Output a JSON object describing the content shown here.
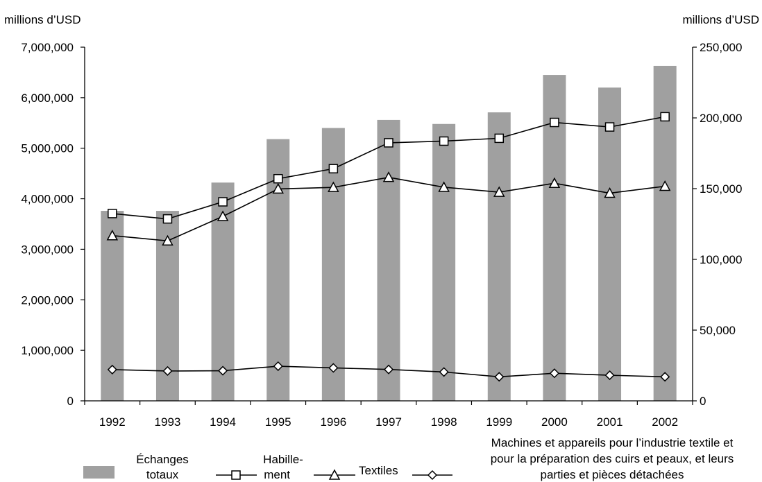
{
  "chart_data": {
    "type": "bar+line",
    "title": "",
    "left_unit": "millions d’USD",
    "right_unit": "millions d’USD",
    "ylim_left": [
      0,
      7000000
    ],
    "ylim_right": [
      0,
      250000
    ],
    "yticks_left": [
      "0",
      "1,000,000",
      "2,000,000",
      "3,000,000",
      "4,000,000",
      "5,000,000",
      "6,000,000",
      "7,000,000"
    ],
    "yticks_right": [
      "0",
      "50,000",
      "100,000",
      "150,000",
      "200,000",
      "250,000"
    ],
    "categories": [
      "1992",
      "1993",
      "1994",
      "1995",
      "1996",
      "1997",
      "1998",
      "1999",
      "2000",
      "2001",
      "2002"
    ],
    "series": [
      {
        "name": "Échanges totaux",
        "type": "bar",
        "axis": "left",
        "color": "#a0a0a0",
        "values": [
          3760000,
          3760000,
          4320000,
          5180000,
          5400000,
          5560000,
          5480000,
          5710000,
          6450000,
          6200000,
          6630000
        ]
      },
      {
        "name": "Habillement",
        "type": "line",
        "axis": "right",
        "marker": "square",
        "values": [
          132400,
          128600,
          140700,
          157000,
          164100,
          182400,
          183600,
          185600,
          196800,
          193600,
          200800
        ]
      },
      {
        "name": "Textiles",
        "type": "line",
        "axis": "right",
        "marker": "triangle",
        "values": [
          116800,
          113100,
          130400,
          149800,
          150900,
          158000,
          151000,
          147500,
          153800,
          146800,
          151700
        ]
      },
      {
        "name": "Machines et appareils pour l’industrie textile et pour la préparation des cuirs et peaux, et leurs parties et pièces détachées",
        "type": "line",
        "axis": "right",
        "marker": "diamond",
        "values": [
          22100,
          21100,
          21300,
          24500,
          23300,
          22200,
          20400,
          17000,
          19500,
          18100,
          17000
        ]
      }
    ]
  },
  "legend": {
    "bar_label_lines": [
      "Échanges",
      "totaux"
    ],
    "habillement_label_lines": [
      "Habille-",
      "ment"
    ],
    "textiles_label": "Textiles",
    "machines_label_lines": [
      "Machines et appareils pour l’industrie textile et",
      "pour la préparation des cuirs et peaux, et leurs",
      "parties et pièces détachées"
    ]
  }
}
